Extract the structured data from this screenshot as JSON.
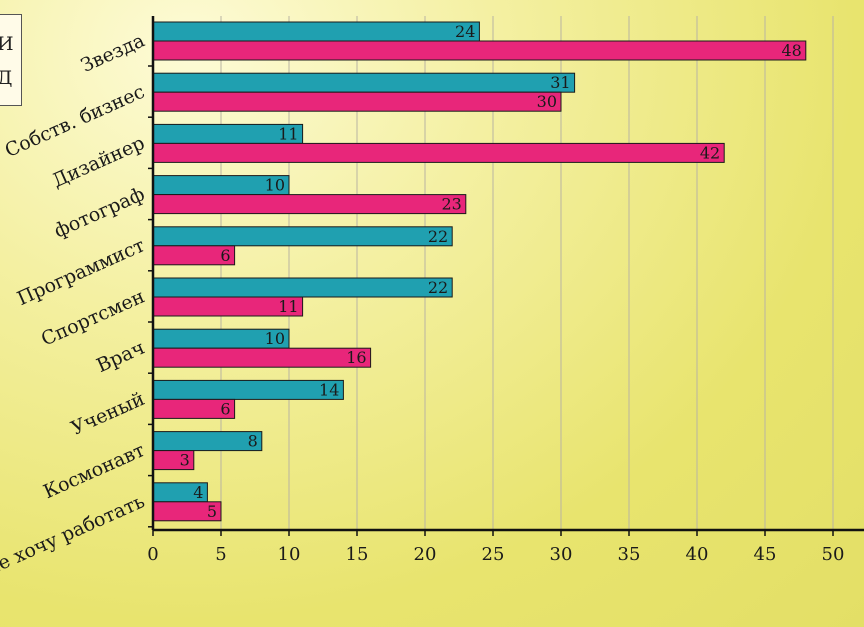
{
  "chart_data": {
    "type": "bar",
    "orientation": "horizontal",
    "categories": [
      "Звезда",
      "Собств. бизнес",
      "Дизайнер",
      "фотограф",
      "Программист",
      "Спортсмен",
      "Врач",
      "Ученый",
      "Космонавт",
      "Не хочу работать"
    ],
    "series": [
      {
        "values": [
          24,
          31,
          11,
          10,
          22,
          22,
          10,
          14,
          8,
          4
        ],
        "color": "#20a0b0"
      },
      {
        "values": [
          48,
          30,
          42,
          23,
          6,
          11,
          16,
          6,
          3,
          5
        ],
        "color": "#e8267a"
      }
    ],
    "xlim": [
      0,
      50
    ],
    "xticks": [
      0,
      5,
      10,
      15,
      20,
      25,
      30,
      35,
      40,
      45,
      50
    ],
    "grid": true,
    "legend_fragments": [
      "И",
      "Д"
    ],
    "colors": {
      "series1": "#20a0b0",
      "series2": "#e8267a",
      "grid": "#b9b4a2",
      "axis": "#111111"
    }
  }
}
